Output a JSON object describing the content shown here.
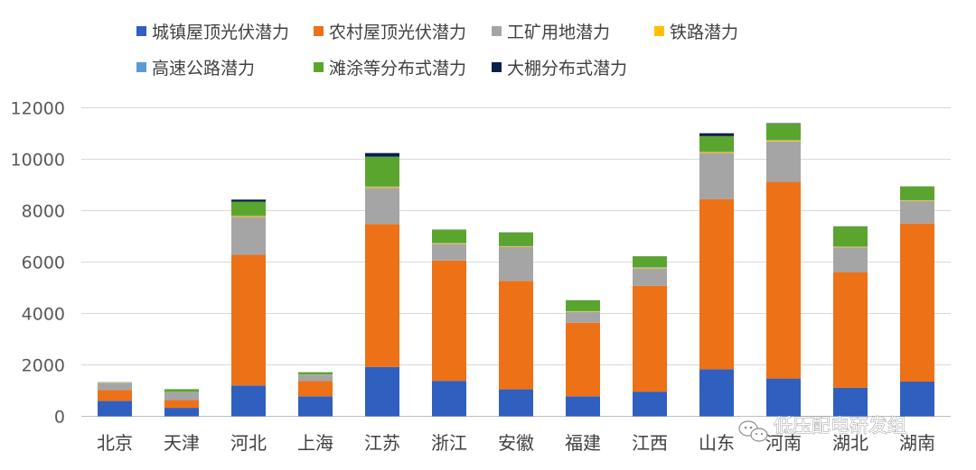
{
  "chart_data": {
    "type": "bar",
    "stacked": true,
    "title": "",
    "xlabel": "",
    "ylabel": "",
    "ylim": [
      0,
      12000
    ],
    "yticks": [
      0,
      2000,
      4000,
      6000,
      8000,
      10000,
      12000
    ],
    "grid": true,
    "legend_position": "top",
    "categories": [
      "北京",
      "天津",
      "河北",
      "上海",
      "江苏",
      "浙江",
      "安徽",
      "福建",
      "江西",
      "山东",
      "河南",
      "湖北",
      "湖南"
    ],
    "series": [
      {
        "name": "城镇屋顶光伏潜力",
        "color": "#2f5fbf",
        "values": [
          600,
          330,
          1200,
          780,
          1920,
          1380,
          1050,
          780,
          960,
          1830,
          1470,
          1110,
          1350
        ]
      },
      {
        "name": "农村屋顶光伏潜力",
        "color": "#ed7117",
        "values": [
          420,
          300,
          5080,
          590,
          5560,
          4680,
          4220,
          2860,
          4120,
          6620,
          7650,
          4500,
          6150
        ]
      },
      {
        "name": "工矿用地潜力",
        "color": "#a5a5a5",
        "values": [
          270,
          300,
          1470,
          240,
          1400,
          640,
          1310,
          420,
          670,
          1790,
          1570,
          950,
          870
        ]
      },
      {
        "name": "铁路潜力",
        "color": "#ffc000",
        "values": [
          10,
          10,
          40,
          10,
          40,
          30,
          30,
          20,
          30,
          40,
          40,
          30,
          30
        ]
      },
      {
        "name": "高速公路潜力",
        "color": "#5b9bd5",
        "values": [
          10,
          10,
          20,
          10,
          20,
          20,
          20,
          10,
          20,
          20,
          20,
          20,
          20
        ]
      },
      {
        "name": "滩涂等分布式潜力",
        "color": "#5aa52e",
        "values": [
          10,
          100,
          540,
          80,
          1160,
          510,
          510,
          420,
          420,
          600,
          630,
          770,
          520
        ]
      },
      {
        "name": "大棚分布式潜力",
        "color": "#0b1f4d",
        "values": [
          5,
          5,
          80,
          5,
          140,
          5,
          10,
          5,
          5,
          110,
          20,
          10,
          5
        ]
      }
    ]
  },
  "watermark": {
    "text": "低压配电研发组",
    "icon": "wechat-icon"
  }
}
